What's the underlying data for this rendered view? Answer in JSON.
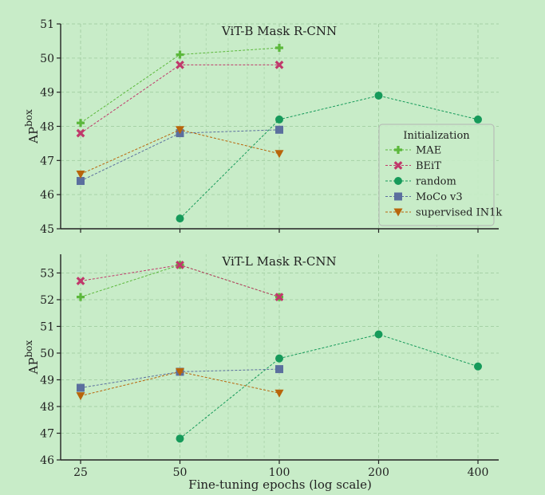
{
  "figure": {
    "xlabel": "Fine-tuning epochs (log scale)"
  },
  "legend": {
    "title": "Initialization",
    "location": "right of top panel",
    "entries": [
      {
        "name": "MAE",
        "color": "#5cb83c",
        "marker": "plus"
      },
      {
        "name": "BEiT",
        "color": "#c0396b",
        "marker": "x"
      },
      {
        "name": "random",
        "color": "#169a5a",
        "marker": "circle"
      },
      {
        "name": "MoCo v3",
        "color": "#5b6f9e",
        "marker": "square"
      },
      {
        "name": "supervised IN1k",
        "color": "#b8650b",
        "marker": "triangle-down"
      }
    ]
  },
  "chart_data": [
    {
      "type": "line",
      "title": "ViT-B Mask R-CNN",
      "ylabel": "AP",
      "ylabel_superscript": "box",
      "x_scale": "log",
      "x_ticks": [
        25,
        50,
        100,
        200,
        400
      ],
      "ylim": [
        45,
        51
      ],
      "y_ticks": [
        45,
        46,
        47,
        48,
        49,
        50,
        51
      ],
      "grid": true,
      "series": [
        {
          "name": "MAE",
          "x": [
            25,
            50,
            100
          ],
          "y": [
            48.1,
            50.1,
            50.3
          ]
        },
        {
          "name": "BEiT",
          "x": [
            25,
            50,
            100
          ],
          "y": [
            47.8,
            49.8,
            49.8
          ]
        },
        {
          "name": "random",
          "x": [
            50,
            100,
            200,
            400
          ],
          "y": [
            45.3,
            48.2,
            48.9,
            48.2
          ]
        },
        {
          "name": "MoCo v3",
          "x": [
            25,
            50,
            100
          ],
          "y": [
            46.4,
            47.8,
            47.9
          ]
        },
        {
          "name": "supervised IN1k",
          "x": [
            25,
            50,
            100
          ],
          "y": [
            46.6,
            47.9,
            47.2
          ]
        }
      ]
    },
    {
      "type": "line",
      "title": "ViT-L Mask R-CNN",
      "ylabel": "AP",
      "ylabel_superscript": "box",
      "x_scale": "log",
      "x_ticks": [
        25,
        50,
        100,
        200,
        400
      ],
      "ylim": [
        46,
        53.7
      ],
      "y_ticks": [
        46,
        47,
        48,
        49,
        50,
        51,
        52,
        53
      ],
      "grid": true,
      "series": [
        {
          "name": "MAE",
          "x": [
            25,
            50,
            100
          ],
          "y": [
            52.1,
            53.3,
            52.1
          ]
        },
        {
          "name": "BEiT",
          "x": [
            25,
            50,
            100
          ],
          "y": [
            52.7,
            53.3,
            52.1
          ]
        },
        {
          "name": "random",
          "x": [
            50,
            100,
            200,
            400
          ],
          "y": [
            46.8,
            49.8,
            50.7,
            49.5
          ]
        },
        {
          "name": "MoCo v3",
          "x": [
            25,
            50,
            100
          ],
          "y": [
            48.7,
            49.3,
            49.4
          ]
        },
        {
          "name": "supervised IN1k",
          "x": [
            25,
            50,
            100
          ],
          "y": [
            48.4,
            49.3,
            48.5
          ]
        }
      ]
    }
  ]
}
